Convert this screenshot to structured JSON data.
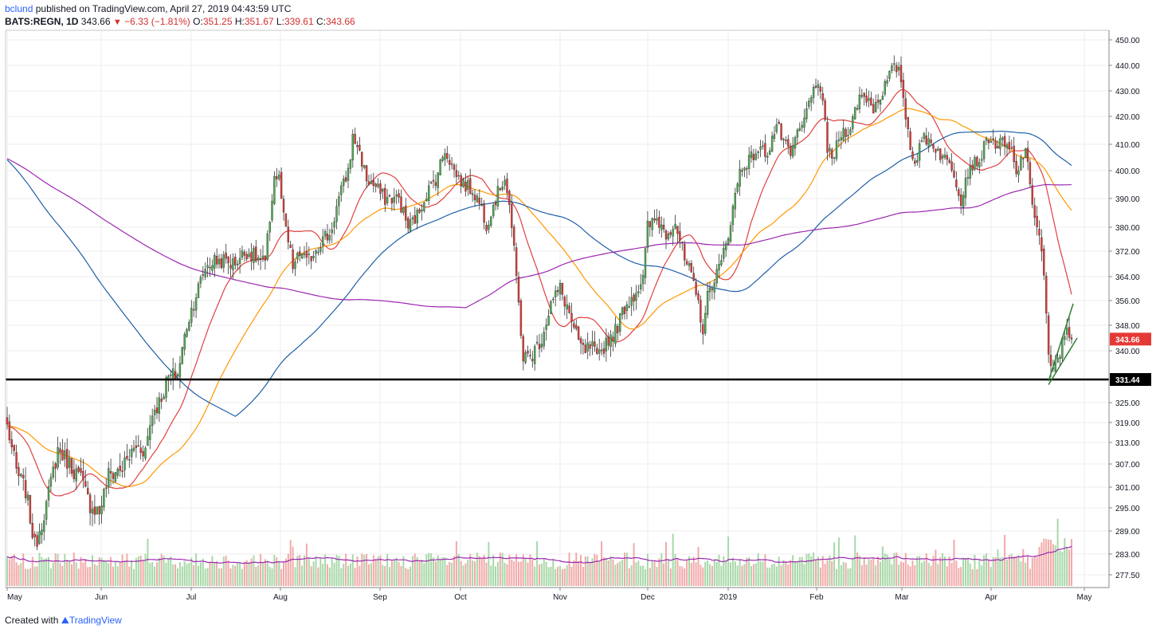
{
  "header": {
    "user": "bclund",
    "published": "published on TradingView.com, April 27, 2019 04:43:59 UTC",
    "symbol": "BATS:REGN, 1D",
    "last": "343.66",
    "change": "−6.33 (−1.81%)",
    "o_label": "O:",
    "o": "351.25",
    "h_label": "H:",
    "h": "351.67",
    "l_label": "L:",
    "l": "339.61",
    "c_label": "C:",
    "c": "343.66"
  },
  "footer": {
    "created_with": "Created with",
    "brand": "TradingView"
  },
  "colors": {
    "up": "#4caf50",
    "down": "#e53935",
    "ma20": "#e04040",
    "ma50": "#ff9800",
    "ma100": "#1f5fa8",
    "ma200": "#9c27b0",
    "volMa": "#9c27b0",
    "volUp": "#a8d8a8",
    "volDown": "#f2aaaa",
    "grid": "#eeeeee",
    "support": "#000000",
    "channel": "#2e7d32"
  },
  "chart_data": {
    "type": "candlestick",
    "y_ticks": [
      "450.00",
      "440.00",
      "430.00",
      "420.00",
      "410.00",
      "400.00",
      "390.00",
      "380.00",
      "372.00",
      "364.00",
      "356.00",
      "348.00",
      "340.00",
      "331.44",
      "325.00",
      "319.00",
      "313.00",
      "307.00",
      "301.00",
      "295.00",
      "289.00",
      "283.00",
      "277.50"
    ],
    "x_ticks": [
      "May",
      "Jun",
      "Jul",
      "Aug",
      "Sep",
      "Oct",
      "Nov",
      "Dec",
      "2019",
      "Feb",
      "Mar",
      "Apr",
      "May"
    ],
    "last_price": "343.66",
    "support_level": "331.44",
    "grid": true,
    "price_waypoints": [
      [
        0,
        318
      ],
      [
        4,
        305
      ],
      [
        8,
        300
      ],
      [
        12,
        285
      ],
      [
        17,
        296
      ],
      [
        22,
        311
      ],
      [
        26,
        308
      ],
      [
        32,
        303
      ],
      [
        36,
        296
      ],
      [
        40,
        294
      ],
      [
        44,
        304
      ],
      [
        50,
        306
      ],
      [
        56,
        312
      ],
      [
        60,
        311
      ],
      [
        63,
        322
      ],
      [
        66,
        325
      ],
      [
        70,
        332
      ],
      [
        74,
        333
      ],
      [
        78,
        348
      ],
      [
        82,
        358
      ],
      [
        86,
        367
      ],
      [
        90,
        369
      ],
      [
        94,
        369
      ],
      [
        98,
        368
      ],
      [
        104,
        372
      ],
      [
        108,
        370
      ],
      [
        112,
        368
      ],
      [
        116,
        398
      ],
      [
        118,
        397
      ],
      [
        120,
        383
      ],
      [
        124,
        367
      ],
      [
        128,
        372
      ],
      [
        130,
        368
      ],
      [
        134,
        373
      ],
      [
        138,
        377
      ],
      [
        140,
        377
      ],
      [
        144,
        390
      ],
      [
        148,
        400
      ],
      [
        150,
        412
      ],
      [
        152,
        410
      ],
      [
        156,
        397
      ],
      [
        160,
        394
      ],
      [
        164,
        390
      ],
      [
        170,
        390
      ],
      [
        174,
        380
      ],
      [
        178,
        384
      ],
      [
        182,
        392
      ],
      [
        186,
        397
      ],
      [
        190,
        408
      ],
      [
        194,
        400
      ],
      [
        198,
        395
      ],
      [
        202,
        393
      ],
      [
        206,
        387
      ],
      [
        208,
        381
      ],
      [
        212,
        390
      ],
      [
        216,
        398
      ],
      [
        218,
        388
      ],
      [
        222,
        355
      ],
      [
        224,
        338
      ],
      [
        226,
        338
      ],
      [
        228,
        339
      ],
      [
        232,
        344
      ],
      [
        236,
        355
      ],
      [
        240,
        360
      ],
      [
        244,
        352
      ],
      [
        246,
        346
      ],
      [
        250,
        340
      ],
      [
        254,
        341
      ],
      [
        256,
        337
      ],
      [
        260,
        343
      ],
      [
        264,
        346
      ],
      [
        268,
        354
      ],
      [
        272,
        358
      ],
      [
        276,
        363
      ],
      [
        278,
        380
      ],
      [
        282,
        383
      ],
      [
        286,
        378
      ],
      [
        290,
        382
      ],
      [
        294,
        369
      ],
      [
        296,
        366
      ],
      [
        300,
        355
      ],
      [
        302,
        347
      ],
      [
        304,
        357
      ],
      [
        306,
        362
      ],
      [
        310,
        368
      ],
      [
        314,
        382
      ],
      [
        318,
        400
      ],
      [
        322,
        404
      ],
      [
        326,
        408
      ],
      [
        330,
        407
      ],
      [
        334,
        417
      ],
      [
        336,
        413
      ],
      [
        340,
        405
      ],
      [
        342,
        412
      ],
      [
        346,
        418
      ],
      [
        348,
        428
      ],
      [
        352,
        430
      ],
      [
        354,
        428
      ],
      [
        356,
        408
      ],
      [
        358,
        404
      ],
      [
        362,
        414
      ],
      [
        366,
        416
      ],
      [
        370,
        428
      ],
      [
        374,
        427
      ],
      [
        376,
        423
      ],
      [
        380,
        430
      ],
      [
        384,
        438
      ],
      [
        386,
        439
      ],
      [
        388,
        435
      ],
      [
        390,
        420
      ],
      [
        392,
        410
      ],
      [
        394,
        403
      ],
      [
        398,
        413
      ],
      [
        402,
        410
      ],
      [
        406,
        405
      ],
      [
        410,
        402
      ],
      [
        414,
        390
      ],
      [
        416,
        397
      ],
      [
        418,
        402
      ],
      [
        422,
        404
      ],
      [
        426,
        413
      ],
      [
        428,
        410
      ],
      [
        432,
        410
      ],
      [
        436,
        407
      ],
      [
        438,
        398
      ],
      [
        442,
        409
      ],
      [
        444,
        393
      ],
      [
        446,
        385
      ],
      [
        448,
        377
      ],
      [
        450,
        365
      ],
      [
        452,
        337
      ],
      [
        454,
        333
      ],
      [
        456,
        338
      ],
      [
        458,
        342
      ],
      [
        460,
        348
      ],
      [
        462,
        344
      ]
    ],
    "moving_averages": [
      {
        "period": 20,
        "color": "#e04040"
      },
      {
        "period": 50,
        "color": "#ff9800"
      },
      {
        "period": 100,
        "color": "#1f5fa8"
      },
      {
        "period": 200,
        "color": "#9c27b0"
      }
    ]
  }
}
